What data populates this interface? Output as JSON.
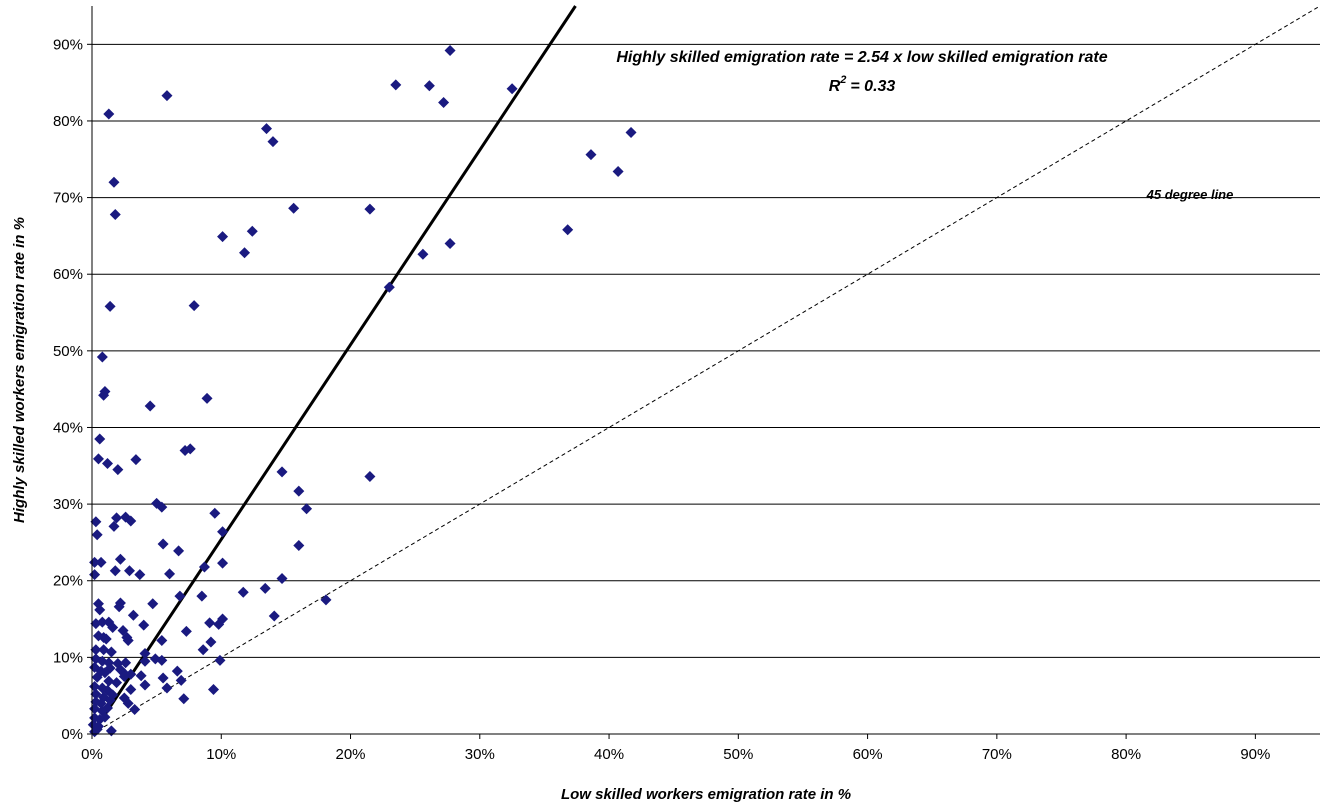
{
  "chart_data": {
    "type": "scatter",
    "xlabel": "Low skilled workers emigration rate in %",
    "ylabel": "Highly skilled workers emigration rate in %",
    "xlim": [
      0,
      95
    ],
    "ylim": [
      0,
      95
    ],
    "x_ticks": [
      "0%",
      "10%",
      "20%",
      "30%",
      "40%",
      "50%",
      "60%",
      "70%",
      "80%",
      "90%"
    ],
    "y_ticks": [
      "0%",
      "10%",
      "20%",
      "30%",
      "40%",
      "50%",
      "60%",
      "70%",
      "80%",
      "90%"
    ],
    "grid": "horizontal",
    "annotations": {
      "equation": "Highly skilled emigration rate = 2.54 x low skilled emigration rate",
      "r2_label": "R",
      "r2_exp": "2",
      "r2_value": "= 0.33",
      "line45_label": "45 degree line"
    },
    "fit_line": {
      "slope": 2.54,
      "intercept": 0
    },
    "reference_line": {
      "slope": 1,
      "intercept": 0
    },
    "colors": {
      "points": "#1a1a80",
      "fit": "#000000",
      "grid": "#000000"
    },
    "points": [
      [
        27.7,
        89.2
      ],
      [
        32.5,
        84.2
      ],
      [
        23.5,
        84.7
      ],
      [
        26.1,
        84.6
      ],
      [
        27.2,
        82.4
      ],
      [
        5.8,
        83.3
      ],
      [
        1.3,
        80.9
      ],
      [
        13.5,
        79.0
      ],
      [
        14.0,
        77.3
      ],
      [
        41.7,
        78.5
      ],
      [
        38.6,
        75.6
      ],
      [
        40.7,
        73.4
      ],
      [
        1.7,
        72.0
      ],
      [
        1.8,
        67.8
      ],
      [
        15.6,
        68.6
      ],
      [
        21.5,
        68.5
      ],
      [
        12.4,
        65.6
      ],
      [
        10.1,
        64.9
      ],
      [
        11.8,
        62.8
      ],
      [
        25.6,
        62.6
      ],
      [
        27.7,
        64.0
      ],
      [
        36.8,
        65.8
      ],
      [
        23.0,
        58.3
      ],
      [
        1.4,
        55.8
      ],
      [
        7.9,
        55.9
      ],
      [
        0.8,
        49.2
      ],
      [
        1.0,
        44.7
      ],
      [
        0.9,
        44.2
      ],
      [
        4.5,
        42.8
      ],
      [
        8.9,
        43.8
      ],
      [
        0.6,
        38.5
      ],
      [
        0.5,
        35.9
      ],
      [
        1.2,
        35.3
      ],
      [
        2.0,
        34.5
      ],
      [
        3.4,
        35.8
      ],
      [
        7.2,
        37.0
      ],
      [
        7.6,
        37.2
      ],
      [
        14.7,
        34.2
      ],
      [
        21.5,
        33.6
      ],
      [
        16.0,
        31.7
      ],
      [
        16.6,
        29.4
      ],
      [
        5.0,
        30.1
      ],
      [
        5.4,
        29.6
      ],
      [
        9.5,
        28.8
      ],
      [
        0.3,
        27.7
      ],
      [
        1.7,
        27.1
      ],
      [
        1.9,
        28.2
      ],
      [
        2.6,
        28.3
      ],
      [
        3.0,
        27.8
      ],
      [
        10.1,
        26.4
      ],
      [
        0.4,
        26.0
      ],
      [
        0.2,
        22.4
      ],
      [
        0.7,
        22.4
      ],
      [
        2.2,
        22.8
      ],
      [
        5.5,
        24.8
      ],
      [
        6.7,
        23.9
      ],
      [
        10.1,
        22.3
      ],
      [
        16.0,
        24.6
      ],
      [
        0.2,
        20.8
      ],
      [
        1.8,
        21.3
      ],
      [
        2.9,
        21.3
      ],
      [
        3.7,
        20.8
      ],
      [
        6.0,
        20.9
      ],
      [
        8.7,
        21.8
      ],
      [
        14.7,
        20.3
      ],
      [
        13.4,
        19.0
      ],
      [
        11.7,
        18.5
      ],
      [
        6.8,
        18.0
      ],
      [
        8.5,
        18.0
      ],
      [
        18.1,
        17.5
      ],
      [
        0.5,
        17.0
      ],
      [
        0.6,
        16.2
      ],
      [
        2.2,
        17.1
      ],
      [
        2.1,
        16.6
      ],
      [
        4.7,
        17.0
      ],
      [
        3.2,
        15.5
      ],
      [
        14.1,
        15.4
      ],
      [
        9.1,
        14.5
      ],
      [
        9.8,
        14.3
      ],
      [
        10.1,
        15.0
      ],
      [
        0.3,
        14.4
      ],
      [
        0.8,
        14.6
      ],
      [
        1.3,
        14.6
      ],
      [
        1.6,
        13.9
      ],
      [
        2.4,
        13.5
      ],
      [
        4.0,
        14.2
      ],
      [
        7.3,
        13.4
      ],
      [
        0.5,
        12.8
      ],
      [
        0.9,
        12.6
      ],
      [
        1.1,
        12.4
      ],
      [
        2.7,
        12.6
      ],
      [
        2.8,
        12.2
      ],
      [
        5.4,
        12.2
      ],
      [
        9.2,
        12.0
      ],
      [
        0.3,
        11.0
      ],
      [
        0.9,
        11.0
      ],
      [
        1.5,
        10.7
      ],
      [
        4.1,
        10.5
      ],
      [
        8.6,
        11.0
      ],
      [
        0.3,
        9.8
      ],
      [
        0.8,
        9.5
      ],
      [
        1.3,
        9.3
      ],
      [
        2.0,
        9.2
      ],
      [
        2.6,
        9.3
      ],
      [
        4.1,
        9.5
      ],
      [
        4.9,
        9.8
      ],
      [
        5.4,
        9.6
      ],
      [
        9.9,
        9.6
      ],
      [
        0.2,
        8.7
      ],
      [
        0.7,
        8.2
      ],
      [
        1.0,
        8.0
      ],
      [
        1.4,
        8.6
      ],
      [
        2.2,
        8.4
      ],
      [
        2.5,
        7.9
      ],
      [
        3.0,
        7.8
      ],
      [
        3.8,
        7.6
      ],
      [
        5.5,
        7.3
      ],
      [
        6.6,
        8.2
      ],
      [
        0.4,
        7.4
      ],
      [
        1.3,
        6.9
      ],
      [
        1.9,
        6.7
      ],
      [
        2.5,
        7.5
      ],
      [
        4.1,
        6.4
      ],
      [
        6.9,
        7.0
      ],
      [
        0.2,
        6.2
      ],
      [
        0.8,
        6.0
      ],
      [
        1.2,
        5.7
      ],
      [
        3.0,
        5.8
      ],
      [
        5.8,
        6.0
      ],
      [
        9.4,
        5.8
      ],
      [
        0.3,
        5.2
      ],
      [
        0.9,
        4.8
      ],
      [
        1.6,
        5.1
      ],
      [
        2.5,
        4.7
      ],
      [
        7.1,
        4.6
      ],
      [
        0.3,
        4.2
      ],
      [
        0.7,
        4.0
      ],
      [
        1.4,
        4.4
      ],
      [
        2.8,
        4.0
      ],
      [
        0.2,
        3.3
      ],
      [
        0.8,
        3.0
      ],
      [
        1.2,
        3.4
      ],
      [
        3.3,
        3.2
      ],
      [
        0.2,
        2.1
      ],
      [
        0.6,
        1.9
      ],
      [
        1.0,
        2.2
      ],
      [
        0.1,
        1.2
      ],
      [
        0.5,
        1.0
      ],
      [
        1.5,
        0.4
      ],
      [
        0.2,
        0.3
      ],
      [
        0.4,
        0.6
      ]
    ]
  }
}
